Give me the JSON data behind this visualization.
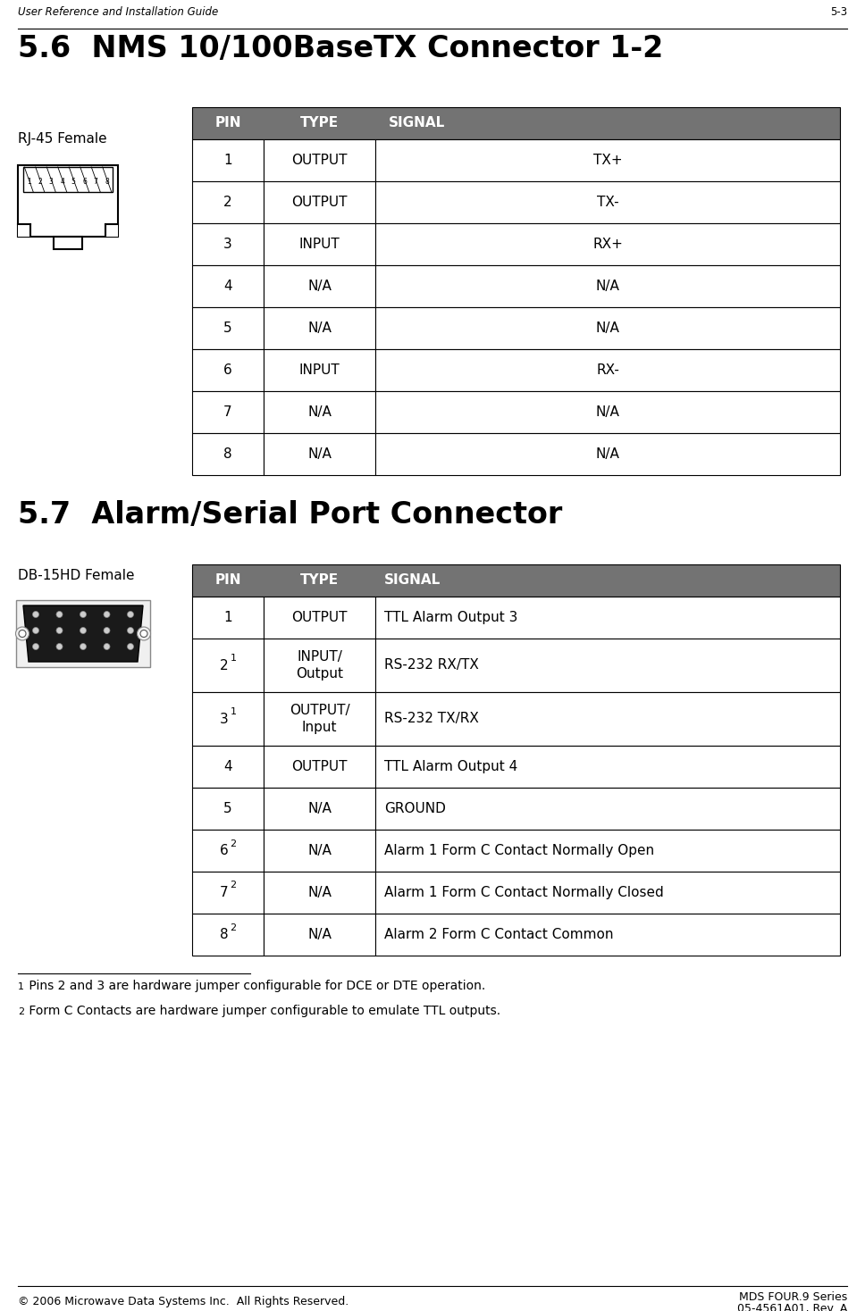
{
  "page_header_left": "User Reference and Installation Guide",
  "page_header_right": "5-3",
  "page_footer_left": "© 2006 Microwave Data Systems Inc.  All Rights Reserved.",
  "page_footer_right_line1": "MDS FOUR.9 Series",
  "page_footer_right_line2": "05-4561A01, Rev. A",
  "section1_title": "5.6  NMS 10/100BaseTX Connector 1-2",
  "section2_title": "5.7  Alarm/Serial Port Connector",
  "connector1_label": "RJ-45 Female",
  "connector2_label": "DB-15HD Female",
  "table1_header": [
    "PIN",
    "TYPE",
    "SIGNAL"
  ],
  "table1_rows": [
    [
      "1",
      "OUTPUT",
      "TX+"
    ],
    [
      "2",
      "OUTPUT",
      "TX-"
    ],
    [
      "3",
      "INPUT",
      "RX+"
    ],
    [
      "4",
      "N/A",
      "N/A"
    ],
    [
      "5",
      "N/A",
      "N/A"
    ],
    [
      "6",
      "INPUT",
      "RX-"
    ],
    [
      "7",
      "N/A",
      "N/A"
    ],
    [
      "8",
      "N/A",
      "N/A"
    ]
  ],
  "table2_header": [
    "PIN",
    "TYPE",
    "SIGNAL"
  ],
  "table2_rows": [
    [
      "1",
      "OUTPUT",
      "TTL Alarm Output 3"
    ],
    [
      "2 1",
      "INPUT/\nOutput",
      "RS-232 RX/TX"
    ],
    [
      "3 1",
      "OUTPUT/\nInput",
      "RS-232 TX/RX"
    ],
    [
      "4",
      "OUTPUT",
      "TTL Alarm Output 4"
    ],
    [
      "5",
      "N/A",
      "GROUND"
    ],
    [
      "6 2",
      "N/A",
      "Alarm 1 Form C Contact Normally Open"
    ],
    [
      "7 2",
      "N/A",
      "Alarm 1 Form C Contact Normally Closed"
    ],
    [
      "8 2",
      "N/A",
      "Alarm 2 Form C Contact Common"
    ]
  ],
  "table2_pin_superscripts": [
    "",
    "1",
    "1",
    "",
    "",
    "2",
    "2",
    "2"
  ],
  "footnote1": "1 Pins 2 and 3 are hardware jumper configurable for DCE or DTE operation.",
  "footnote2": "2 Form C Contacts are hardware jumper configurable to emulate TTL outputs.",
  "header_bg_color": "#737373",
  "header_text_color": "#ffffff",
  "border_color": "#000000",
  "text_color": "#000000",
  "background_color": "#ffffff"
}
